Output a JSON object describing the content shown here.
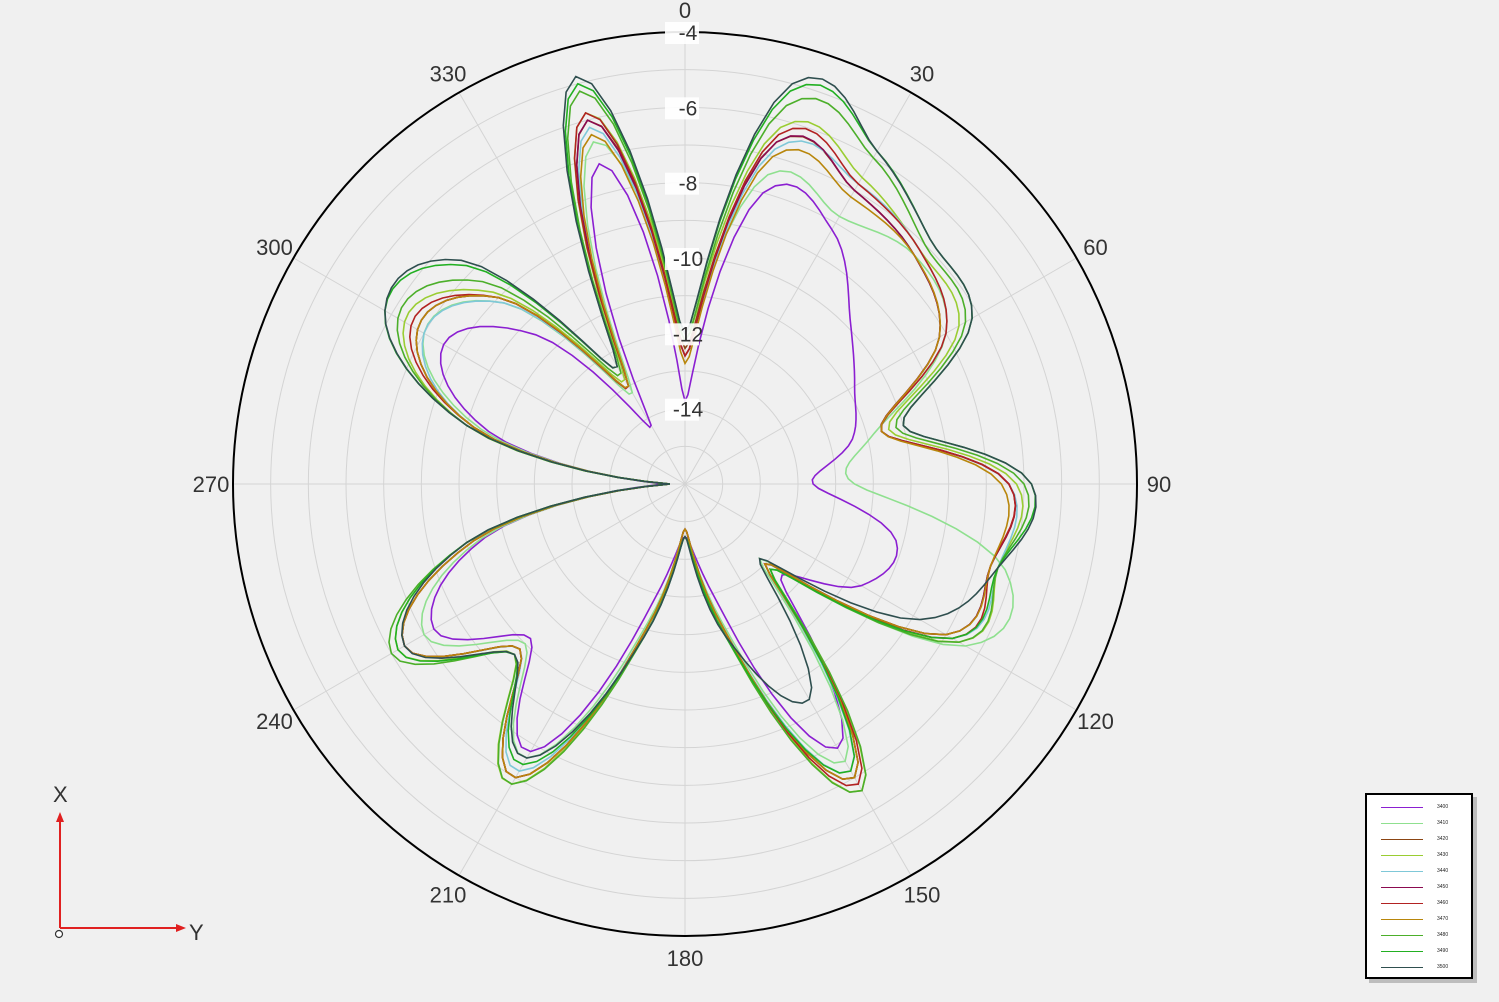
{
  "chart_data": {
    "type": "polar",
    "angle_unit": "degrees",
    "angle_direction": "clockwise",
    "angle_zero": "top",
    "angle_tick_labels": [
      "0",
      "30",
      "60",
      "90",
      "120",
      "150",
      "180",
      "210",
      "240",
      "270",
      "300",
      "330"
    ],
    "radial_range": [
      -16,
      -4
    ],
    "radial_tick_labels": [
      "-4",
      "-6",
      "-8",
      "-10",
      "-12",
      "-14"
    ],
    "radial_ticks": [
      -4,
      -6,
      -8,
      -10,
      -12,
      -14
    ],
    "grid": true,
    "legend_position": "bottom-right",
    "x_samples_deg": [
      0,
      15,
      30,
      45,
      60,
      75,
      90,
      105,
      120,
      135,
      150,
      165,
      180,
      195,
      210,
      225,
      240,
      255,
      270,
      285,
      300,
      315,
      330,
      345
    ],
    "series": [
      {
        "name": "3400",
        "color": "#8b1fd1",
        "r": [
          -13.8,
          -8.0,
          -8.2,
          -9.8,
          -10.8,
          -11.4,
          -12.6,
          -10.2,
          -10.6,
          -12.4,
          -7.9,
          -12.8,
          -14.6,
          -12.8,
          -7.8,
          -10.2,
          -8.3,
          -10.5,
          -15.4,
          -10.6,
          -8.6,
          -10.4,
          -14.2,
          -7.2
        ]
      },
      {
        "name": "3410",
        "color": "#8fe08f",
        "r": [
          -12.0,
          -7.5,
          -7.8,
          -7.4,
          -8.0,
          -10.8,
          -11.5,
          -7.2,
          -7.4,
          -13.2,
          -7.5,
          -12.2,
          -14.8,
          -12.2,
          -7.6,
          -10.0,
          -8.0,
          -10.4,
          -15.6,
          -10.4,
          -8.0,
          -9.2,
          -13.2,
          -6.6
        ]
      },
      {
        "name": "3420",
        "color": "#8b4513",
        "r": [
          -12.4,
          -6.6,
          -7.0,
          -7.4,
          -8.2,
          -10.6,
          -7.4,
          -7.6,
          -8.0,
          -13.0,
          -7.0,
          -12.0,
          -14.8,
          -12.0,
          -7.0,
          -9.8,
          -7.4,
          -10.2,
          -15.6,
          -10.2,
          -7.8,
          -9.0,
          -13.0,
          -6.0
        ]
      },
      {
        "name": "3430",
        "color": "#9acd32",
        "r": [
          -12.2,
          -6.2,
          -6.6,
          -7.2,
          -7.6,
          -10.4,
          -7.2,
          -7.4,
          -7.6,
          -13.0,
          -6.6,
          -12.0,
          -14.8,
          -12.0,
          -6.8,
          -9.6,
          -7.2,
          -10.0,
          -15.6,
          -10.0,
          -7.4,
          -8.8,
          -12.8,
          -5.8
        ]
      },
      {
        "name": "3440",
        "color": "#7fc8d8",
        "r": [
          -12.6,
          -6.8,
          -6.8,
          -7.2,
          -8.0,
          -10.6,
          -7.4,
          -7.4,
          -7.8,
          -13.0,
          -7.2,
          -12.0,
          -14.8,
          -12.0,
          -7.2,
          -9.8,
          -7.4,
          -10.2,
          -15.6,
          -10.2,
          -8.0,
          -9.2,
          -13.0,
          -6.2
        ]
      },
      {
        "name": "3450",
        "color": "#8b0a50",
        "r": [
          -12.6,
          -6.6,
          -7.0,
          -7.4,
          -8.2,
          -10.6,
          -7.4,
          -7.6,
          -8.0,
          -13.0,
          -7.0,
          -12.0,
          -14.8,
          -12.0,
          -7.0,
          -9.8,
          -7.4,
          -10.2,
          -15.6,
          -10.2,
          -7.8,
          -9.0,
          -13.0,
          -6.0
        ]
      },
      {
        "name": "3460",
        "color": "#b22222",
        "r": [
          -12.6,
          -6.4,
          -6.8,
          -7.2,
          -8.0,
          -10.6,
          -7.4,
          -7.6,
          -7.8,
          -13.0,
          -6.8,
          -12.0,
          -14.8,
          -12.0,
          -7.0,
          -9.8,
          -7.4,
          -10.2,
          -15.6,
          -10.2,
          -7.6,
          -9.0,
          -13.0,
          -5.8
        ]
      },
      {
        "name": "3470",
        "color": "#b8860b",
        "r": [
          -12.8,
          -7.0,
          -7.2,
          -7.4,
          -8.2,
          -10.6,
          -7.6,
          -7.6,
          -8.0,
          -13.0,
          -7.0,
          -12.0,
          -14.8,
          -12.0,
          -7.0,
          -9.8,
          -7.4,
          -10.2,
          -15.6,
          -10.2,
          -7.8,
          -9.0,
          -13.0,
          -6.4
        ]
      },
      {
        "name": "3480",
        "color": "#4caf2a",
        "r": [
          -12.2,
          -5.6,
          -6.0,
          -7.0,
          -7.4,
          -10.2,
          -7.0,
          -7.4,
          -7.6,
          -12.8,
          -6.6,
          -11.8,
          -14.6,
          -11.8,
          -6.8,
          -9.6,
          -7.0,
          -10.0,
          -15.6,
          -10.0,
          -7.2,
          -8.4,
          -12.6,
          -5.2
        ]
      },
      {
        "name": "3490",
        "color": "#22b022",
        "r": [
          -12.0,
          -5.2,
          -5.8,
          -6.8,
          -7.2,
          -10.0,
          -6.8,
          -7.4,
          -7.8,
          -12.8,
          -7.2,
          -11.8,
          -14.6,
          -11.8,
          -7.4,
          -9.6,
          -7.2,
          -10.0,
          -15.6,
          -10.0,
          -6.8,
          -7.8,
          -12.4,
          -5.0
        ]
      },
      {
        "name": "3500",
        "color": "#2f4f4f",
        "r": [
          -12.0,
          -5.0,
          -5.8,
          -6.8,
          -7.2,
          -10.0,
          -6.8,
          -7.4,
          -8.8,
          -13.2,
          -9.4,
          -11.8,
          -14.6,
          -11.8,
          -7.6,
          -9.6,
          -7.4,
          -10.0,
          -15.6,
          -10.0,
          -6.8,
          -7.6,
          -12.4,
          -4.8
        ]
      }
    ]
  },
  "axes_indicator": {
    "x_label": "X",
    "y_label": "Y",
    "x_color": "#e02020",
    "y_color": "#e02020"
  }
}
